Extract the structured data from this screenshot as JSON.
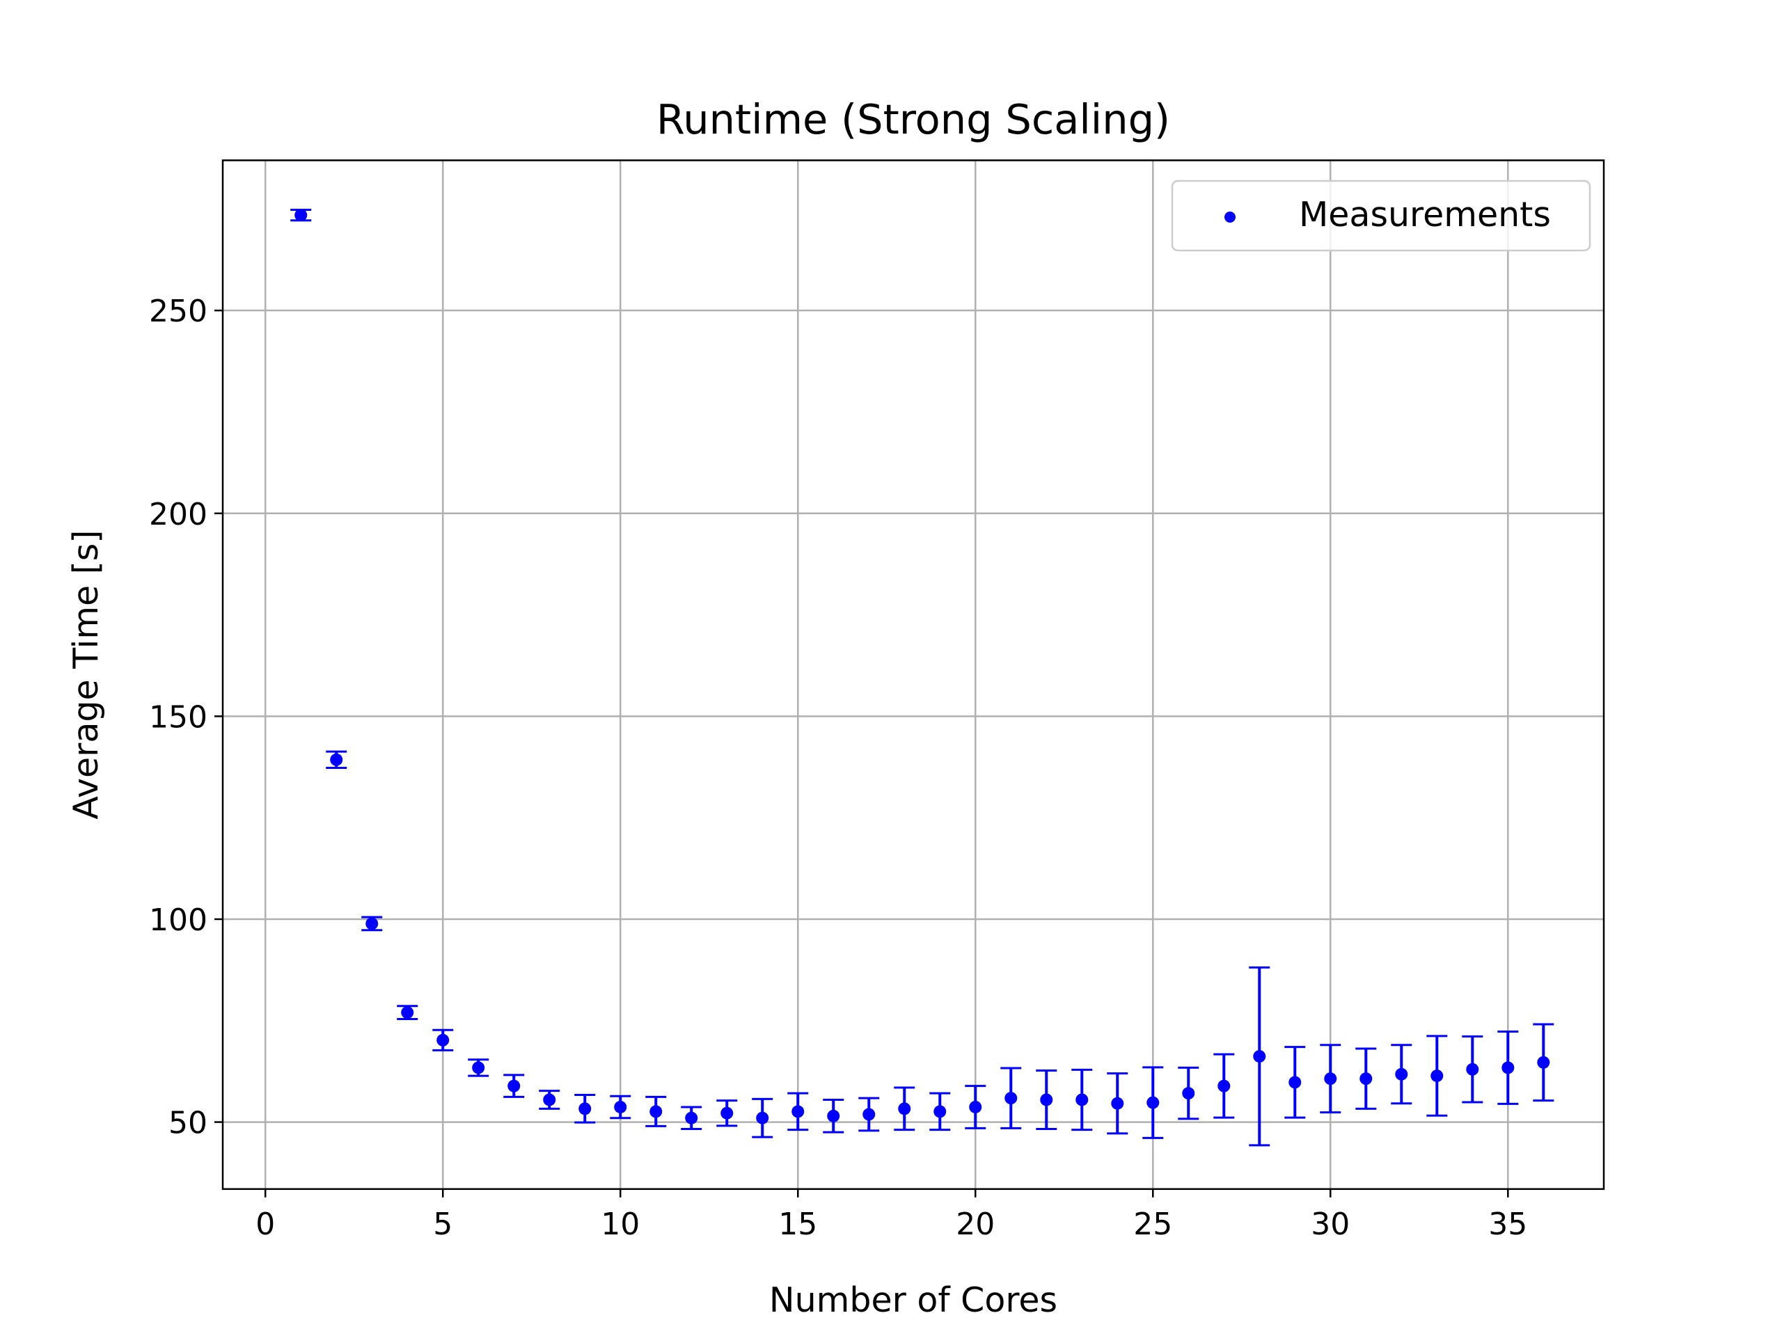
{
  "chart_data": {
    "type": "scatter",
    "title": "Runtime (Strong Scaling)",
    "xlabel": "Number of Cores",
    "ylabel": "Average Time [s]",
    "xlim": [
      -1.2,
      37.7
    ],
    "ylim": [
      33.5,
      287
    ],
    "xticks": [
      0,
      5,
      10,
      15,
      20,
      25,
      30,
      35
    ],
    "yticks": [
      50,
      100,
      150,
      200,
      250
    ],
    "grid": true,
    "legend_position": "top-right",
    "colors": {
      "series": "#0000ff",
      "grid": "#b0b0b0",
      "axes": "#000000",
      "legend_border": "#cccccc"
    },
    "series": [
      {
        "name": "Measurements",
        "x": [
          1,
          2,
          3,
          4,
          5,
          6,
          7,
          8,
          9,
          10,
          11,
          12,
          13,
          14,
          15,
          16,
          17,
          18,
          19,
          20,
          21,
          22,
          23,
          24,
          25,
          26,
          27,
          28,
          29,
          30,
          31,
          32,
          33,
          34,
          35,
          36
        ],
        "y": [
          273.5,
          139.3,
          98.9,
          77.0,
          70.2,
          63.4,
          58.9,
          55.5,
          53.3,
          53.7,
          52.6,
          51.0,
          52.2,
          51.0,
          52.6,
          51.5,
          51.9,
          53.3,
          52.6,
          53.7,
          55.9,
          55.5,
          55.5,
          54.6,
          54.8,
          57.1,
          58.9,
          66.2,
          59.8,
          60.7,
          60.7,
          61.8,
          61.4,
          63.0,
          63.4,
          64.7
        ],
        "err": [
          1.3,
          2.0,
          1.6,
          1.6,
          2.5,
          2.0,
          2.7,
          2.2,
          3.4,
          2.7,
          3.6,
          2.7,
          3.1,
          4.7,
          4.5,
          4.0,
          4.0,
          5.2,
          4.5,
          5.2,
          7.4,
          7.2,
          7.4,
          7.4,
          8.7,
          6.3,
          7.8,
          21.9,
          8.7,
          8.3,
          7.4,
          7.2,
          9.8,
          8.1,
          8.9,
          9.4
        ]
      }
    ]
  }
}
